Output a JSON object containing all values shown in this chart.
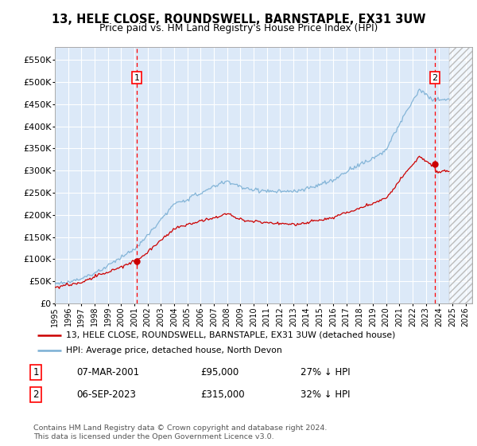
{
  "title": "13, HELE CLOSE, ROUNDSWELL, BARNSTAPLE, EX31 3UW",
  "subtitle": "Price paid vs. HM Land Registry's House Price Index (HPI)",
  "ylim": [
    0,
    580000
  ],
  "yticks": [
    0,
    50000,
    100000,
    150000,
    200000,
    250000,
    300000,
    350000,
    400000,
    450000,
    500000,
    550000
  ],
  "xlim_start": 1995.0,
  "xlim_end": 2026.5,
  "background_color": "#ffffff",
  "plot_bg_color": "#dce9f8",
  "grid_color": "#ffffff",
  "hpi_line_color": "#7aafd4",
  "price_line_color": "#cc0000",
  "purchase1_x": 2001.18,
  "purchase1_y": 95000,
  "purchase2_x": 2023.68,
  "purchase2_y": 315000,
  "legend1_text": "13, HELE CLOSE, ROUNDSWELL, BARNSTAPLE, EX31 3UW (detached house)",
  "legend2_text": "HPI: Average price, detached house, North Devon",
  "table_row1": [
    "1",
    "07-MAR-2001",
    "£95,000",
    "27% ↓ HPI"
  ],
  "table_row2": [
    "2",
    "06-SEP-2023",
    "£315,000",
    "32% ↓ HPI"
  ],
  "footer": "Contains HM Land Registry data © Crown copyright and database right 2024.\nThis data is licensed under the Open Government Licence v3.0.",
  "future_start": 2024.75,
  "n_points": 360
}
